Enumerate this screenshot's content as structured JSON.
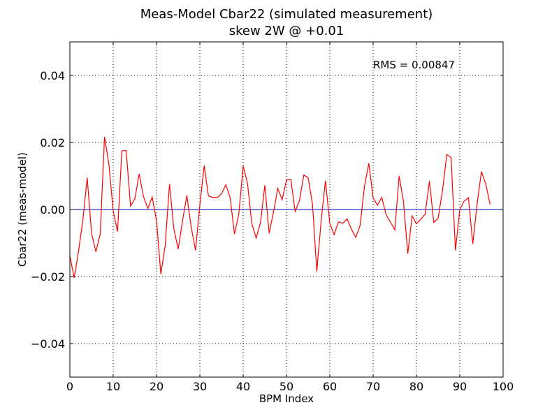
{
  "chart_data": {
    "type": "line",
    "title": "Meas-Model Cbar22 (simulated measurement)",
    "subtitle": "skew 2W @ +0.01",
    "xlabel": "BPM Index",
    "ylabel": "Cbar22 (meas-model)",
    "xlim": [
      0,
      100
    ],
    "ylim": [
      -0.05,
      0.05
    ],
    "xticks": [
      0,
      10,
      20,
      30,
      40,
      50,
      60,
      70,
      80,
      90,
      100
    ],
    "yticks": [
      -0.04,
      -0.02,
      0.0,
      0.02,
      0.04
    ],
    "xtick_labels": [
      "0",
      "10",
      "20",
      "30",
      "40",
      "50",
      "60",
      "70",
      "80",
      "90",
      "100"
    ],
    "ytick_labels": [
      "−0.04",
      "−0.02",
      "0.00",
      "0.02",
      "0.04"
    ],
    "grid": true,
    "annotation": {
      "text": "RMS = 0.00847",
      "x": 70,
      "y": 0.042
    },
    "series": [
      {
        "color": "#ff0000",
        "x": [
          0,
          1,
          2,
          3,
          4,
          5,
          6,
          7,
          8,
          9,
          10,
          11,
          12,
          13,
          14,
          15,
          16,
          17,
          18,
          19,
          20,
          21,
          22,
          23,
          24,
          25,
          26,
          27,
          28,
          29,
          30,
          31,
          32,
          33,
          34,
          35,
          36,
          37,
          38,
          39,
          40,
          41,
          42,
          43,
          44,
          45,
          46,
          47,
          48,
          49,
          50,
          51,
          52,
          53,
          54,
          55,
          56,
          57,
          58,
          59,
          60,
          61,
          62,
          63,
          64,
          65,
          66,
          67,
          68,
          69,
          70,
          71,
          72,
          73,
          74,
          75,
          76,
          77,
          78,
          79,
          80,
          81,
          82,
          83,
          84,
          85,
          86,
          87,
          88,
          89,
          90,
          91,
          92,
          93,
          94,
          95,
          96,
          97
        ],
        "y": [
          -0.0138,
          -0.0204,
          -0.0124,
          -0.0032,
          0.0095,
          -0.007,
          -0.0126,
          -0.0074,
          0.0217,
          0.0136,
          -0.0005,
          -0.0066,
          0.0175,
          0.0176,
          0.001,
          0.0032,
          0.0106,
          0.0038,
          0.0003,
          0.0037,
          -0.0033,
          -0.0193,
          -0.0107,
          0.0076,
          -0.0058,
          -0.0118,
          -0.0034,
          0.0042,
          -0.0052,
          -0.0122,
          0.0013,
          0.0131,
          0.004,
          0.0036,
          0.0036,
          0.0046,
          0.0074,
          0.0035,
          -0.0073,
          -0.0014,
          0.013,
          0.0078,
          -0.0042,
          -0.0085,
          -0.0039,
          0.0072,
          -0.0071,
          -0.0008,
          0.0063,
          0.0029,
          0.0088,
          0.009,
          -0.0006,
          0.0027,
          0.0103,
          0.0095,
          0.0016,
          -0.0185,
          -0.0033,
          0.0086,
          -0.0042,
          -0.0075,
          -0.0037,
          -0.0041,
          -0.0028,
          -0.0059,
          -0.0083,
          -0.0047,
          0.0069,
          0.0138,
          0.0035,
          0.0013,
          0.0036,
          -0.0016,
          -0.0038,
          -0.0061,
          0.01,
          0.0024,
          -0.0132,
          -0.0019,
          -0.0043,
          -0.0029,
          -0.0014,
          0.0085,
          -0.0039,
          -0.0026,
          0.0055,
          0.0164,
          0.0155,
          -0.0122,
          0.0,
          0.0025,
          0.0035,
          -0.0102,
          0.0017,
          0.0113,
          0.0076,
          0.0015
        ]
      }
    ],
    "reference_line": {
      "y": 0.0,
      "color": "#0000b0"
    }
  }
}
